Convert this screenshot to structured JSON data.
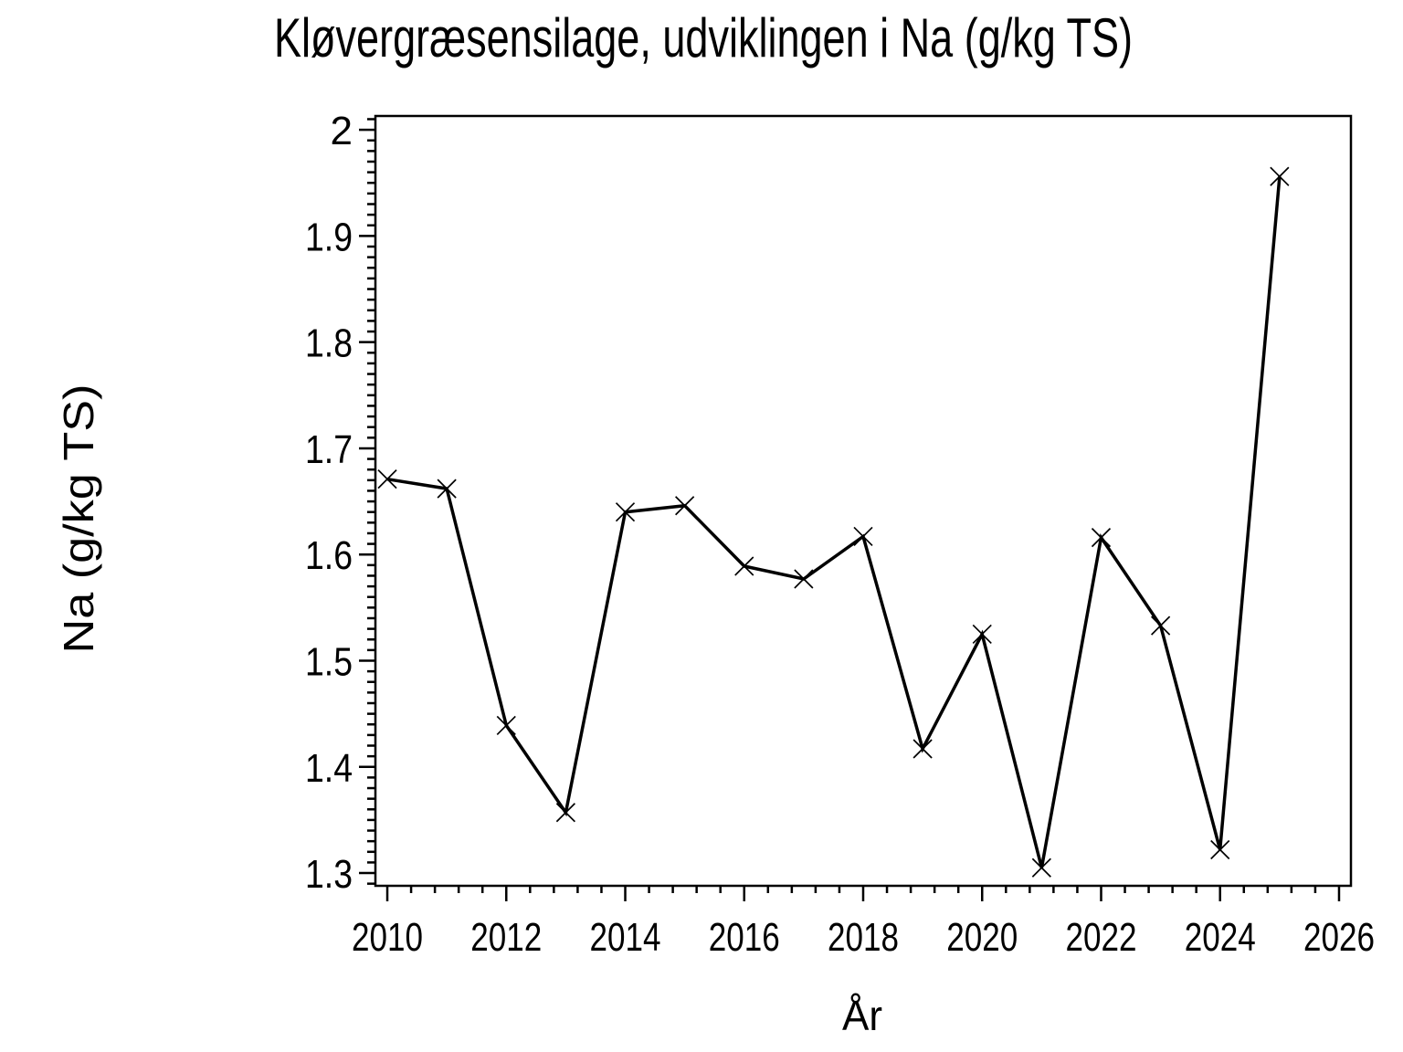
{
  "page": {
    "background": "#ffffff",
    "foreground": "#000000"
  },
  "chart_data": {
    "type": "line",
    "title": "Kløvergræsensilage, udviklingen i Na (g/kg TS)",
    "xlabel": "År",
    "ylabel": "Na (g/kg TS)",
    "grid": false,
    "legend": null,
    "marker": "x",
    "line_color": "#000000",
    "marker_color": "#000000",
    "background": "#ffffff",
    "xlim": [
      2009.8,
      2026.2
    ],
    "ylim": [
      1.288,
      2.013
    ],
    "x_major_ticks": [
      2010,
      2012,
      2014,
      2016,
      2018,
      2020,
      2022,
      2024,
      2026
    ],
    "x_tick_labels": [
      "2010",
      "2012",
      "2014",
      "2016",
      "2018",
      "2020",
      "2022",
      "2024",
      "2026"
    ],
    "x_minor_step": 0.4,
    "y_major_ticks": [
      1.3,
      1.4,
      1.5,
      1.6,
      1.7,
      1.8,
      1.9,
      2.0
    ],
    "y_tick_labels": [
      "1.3",
      "1.4",
      "1.5",
      "1.6",
      "1.7",
      "1.8",
      "1.9",
      "2"
    ],
    "y_minor_step": 0.01,
    "series": [
      {
        "name": "Na",
        "x": [
          2010,
          2011,
          2012,
          2013,
          2014,
          2015,
          2016,
          2017,
          2018,
          2019,
          2020,
          2021,
          2022,
          2023,
          2024,
          2025
        ],
        "y": [
          1.671,
          1.662,
          1.439,
          1.357,
          1.64,
          1.646,
          1.589,
          1.577,
          1.617,
          1.417,
          1.525,
          1.305,
          1.616,
          1.533,
          1.322,
          1.956
        ]
      }
    ]
  }
}
